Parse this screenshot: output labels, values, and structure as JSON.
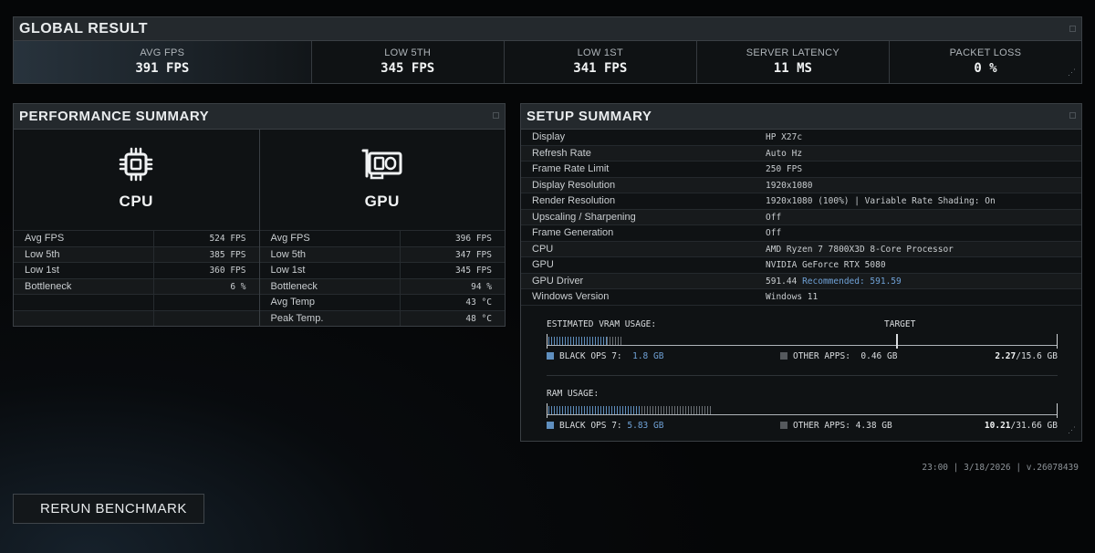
{
  "global": {
    "title": "GLOBAL RESULT",
    "metrics": [
      {
        "label": "AVG FPS",
        "value": "391 FPS"
      },
      {
        "label": "LOW 5TH",
        "value": "345 FPS"
      },
      {
        "label": "LOW 1ST",
        "value": "341 FPS"
      },
      {
        "label": "SERVER LATENCY",
        "value": "11 MS"
      },
      {
        "label": "PACKET LOSS",
        "value": "0 %"
      }
    ]
  },
  "perf": {
    "title": "PERFORMANCE SUMMARY",
    "cpu": {
      "name": "CPU",
      "icon": "cpu-icon",
      "rows": [
        {
          "k": "Avg FPS",
          "v": "524 FPS"
        },
        {
          "k": "Low 5th",
          "v": "385 FPS"
        },
        {
          "k": "Low 1st",
          "v": "360 FPS"
        },
        {
          "k": "Bottleneck",
          "v": "6 %"
        },
        {
          "k": "",
          "v": ""
        },
        {
          "k": "",
          "v": ""
        }
      ]
    },
    "gpu": {
      "name": "GPU",
      "icon": "gpu-icon",
      "rows": [
        {
          "k": "Avg FPS",
          "v": "396 FPS"
        },
        {
          "k": "Low 5th",
          "v": "347 FPS"
        },
        {
          "k": "Low 1st",
          "v": "345 FPS"
        },
        {
          "k": "Bottleneck",
          "v": "94 %"
        },
        {
          "k": "Avg Temp",
          "v": "43 °C"
        },
        {
          "k": "Peak Temp.",
          "v": "48 °C"
        }
      ]
    }
  },
  "setup": {
    "title": "SETUP SUMMARY",
    "rows": [
      {
        "k": "Display",
        "v": "HP X27c"
      },
      {
        "k": "Refresh Rate",
        "v": "Auto Hz"
      },
      {
        "k": "Frame Rate Limit",
        "v": "250 FPS"
      },
      {
        "k": "Display Resolution",
        "v": "1920x1080"
      },
      {
        "k": "Render Resolution",
        "v": "1920x1080 (100%) | Variable Rate Shading: On"
      },
      {
        "k": "Upscaling / Sharpening",
        "v": "Off"
      },
      {
        "k": "Frame Generation",
        "v": "Off"
      },
      {
        "k": "CPU",
        "v": "AMD Ryzen 7 7800X3D 8-Core Processor"
      },
      {
        "k": "GPU",
        "v": "NVIDIA GeForce RTX 5080"
      },
      {
        "k": "GPU Driver",
        "v": "591.44",
        "rec": "Recommended: 591.59"
      },
      {
        "k": "Windows Version",
        "v": "Windows 11"
      }
    ],
    "vram": {
      "label": "ESTIMATED VRAM USAGE:",
      "target_label": "TARGET",
      "game_label": "BLACK OPS 7:",
      "game_value": "1.8 GB",
      "other_label": "OTHER APPS:",
      "other_value": "0.46 GB",
      "used": "2.27",
      "total": "/15.6 GB",
      "game_fraction": 0.115,
      "other_fraction": 0.03
    },
    "ram": {
      "label": "RAM USAGE:",
      "game_label": "BLACK OPS 7:",
      "game_value": "5.83 GB",
      "other_label": "OTHER APPS:",
      "other_value": "4.38 GB",
      "used": "10.21",
      "total": "/31.66 GB",
      "game_fraction": 0.184,
      "other_fraction": 0.138
    },
    "colors": {
      "game": "#5f8fbf",
      "other": "#55595d"
    }
  },
  "footer": {
    "info": "23:00 | 3/18/2026 | v.26078439"
  },
  "rerun_label": "RERUN BENCHMARK"
}
